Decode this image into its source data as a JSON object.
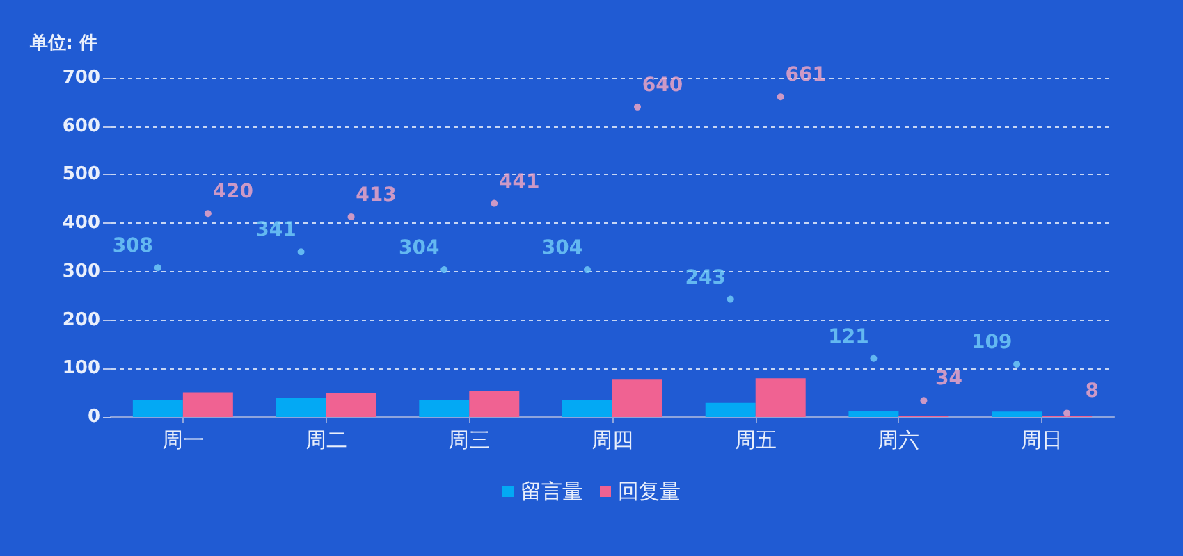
{
  "chart_data": {
    "type": "bar",
    "ylabel": "单位: 件",
    "categories": [
      "周一",
      "周二",
      "周三",
      "周四",
      "周五",
      "周六",
      "周日"
    ],
    "series": [
      {
        "name": "留言量",
        "color": "#03a9f4",
        "values": [
          36,
          40,
          36,
          36,
          29,
          13,
          11
        ]
      },
      {
        "name": "回复量",
        "color": "#f06292",
        "values": [
          51,
          49,
          53,
          77,
          80,
          3,
          2
        ]
      },
      {
        "type": "scatter",
        "marker": "circle",
        "color": "#74d0f9",
        "x": [
          "周一",
          "周二",
          "周三",
          "周四",
          "周五",
          "周六",
          "周日"
        ],
        "values": [
          308,
          341,
          304,
          304,
          243,
          121,
          109
        ],
        "value_labels": [
          "308",
          "341",
          "304",
          "304",
          "243",
          "121",
          "109"
        ]
      },
      {
        "type": "scatter",
        "marker": "circle",
        "color": "#f7a9c3",
        "x": [
          "周一",
          "周二",
          "周三",
          "周四",
          "周五",
          "周六",
          "周日"
        ],
        "values": [
          420,
          413,
          441,
          640,
          661,
          34,
          8
        ],
        "value_labels": [
          "420",
          "413",
          "441",
          "640",
          "661",
          "34",
          "8"
        ]
      }
    ],
    "ylim": [
      0,
      700
    ],
    "yticks": [
      0,
      100,
      200,
      300,
      400,
      500,
      600,
      700
    ],
    "grid": "y",
    "legend": "bottom"
  }
}
